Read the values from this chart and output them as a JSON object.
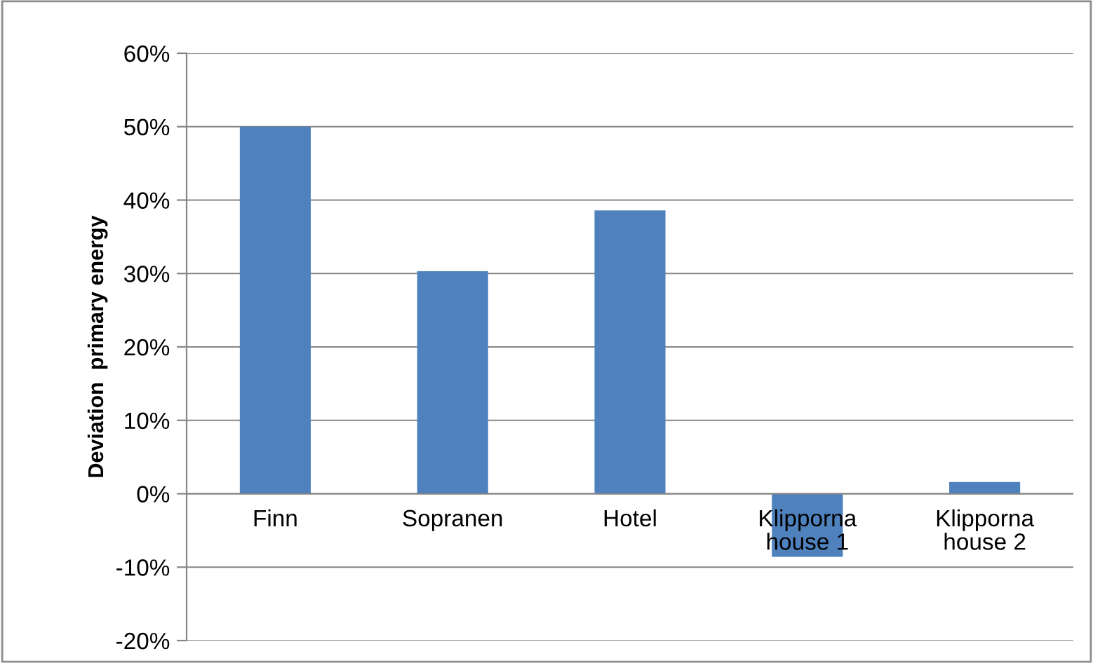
{
  "chart_data": {
    "type": "bar",
    "ylabel": "Deviation  primary energy",
    "categories": [
      "Finn",
      "Sopranen",
      "Hotel",
      "Klipporna\nhouse 1",
      "Klipporna\nhouse 2"
    ],
    "values": [
      50,
      30.3,
      38.6,
      -8.6,
      1.6
    ],
    "color": "#4f81bd",
    "ylim": [
      -20,
      60
    ],
    "yticks": [
      {
        "value": -20,
        "label": "-20%"
      },
      {
        "value": -10,
        "label": "-10%"
      },
      {
        "value": 0,
        "label": "0%"
      },
      {
        "value": 10,
        "label": "10%"
      },
      {
        "value": 20,
        "label": "20%"
      },
      {
        "value": 30,
        "label": "30%"
      },
      {
        "value": 40,
        "label": "40%"
      },
      {
        "value": 50,
        "label": "50%"
      },
      {
        "value": 60,
        "label": "60%"
      }
    ],
    "grid": "y",
    "legend": false
  }
}
